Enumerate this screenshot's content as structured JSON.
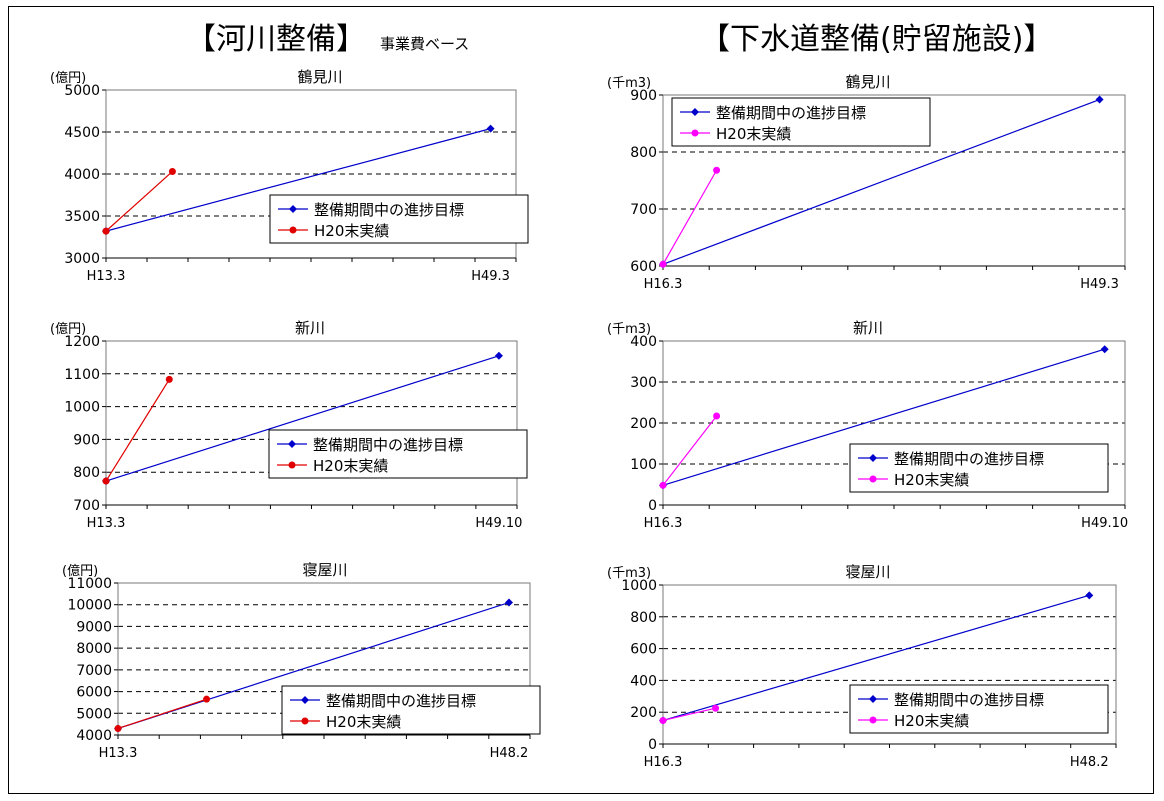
{
  "headings": {
    "river": "【河川整備】",
    "river_sub": "事業費ベース",
    "sewer": "【下水道整備(貯留施設)】"
  },
  "chart_data": [
    {
      "type": "line",
      "title": "鶴見川",
      "ylabel": "(億円)",
      "ylim": [
        3000,
        5000
      ],
      "yticks": [
        3000,
        3500,
        4000,
        4500,
        5000
      ],
      "xlabels": [
        "H13.3",
        "H49.3"
      ],
      "xlim": [
        0,
        100
      ],
      "minor_xticks": 10,
      "dashed_grid": [
        3500,
        4000,
        4500
      ],
      "legend_loc": "right",
      "series": [
        {
          "name": "整備期間中の進捗目標",
          "color": "#0000cc",
          "marker": "diamond",
          "x": [
            0,
            93.8
          ],
          "y": [
            3320,
            4540
          ]
        },
        {
          "name": "H20末実績",
          "color": "#e00000",
          "marker": "circle",
          "x": [
            0,
            16.2
          ],
          "y": [
            3320,
            4030
          ]
        }
      ]
    },
    {
      "type": "line",
      "title": "鶴見川",
      "ylabel": "(千m3)",
      "ylim": [
        600,
        900
      ],
      "yticks": [
        600,
        700,
        800,
        900
      ],
      "xlabels": [
        "H16.3",
        "H49.3"
      ],
      "xlim": [
        0,
        100
      ],
      "minor_xticks": 10,
      "dashed_grid": [
        700,
        800
      ],
      "legend_loc": "top-left",
      "series": [
        {
          "name": "整備期間中の進捗目標",
          "color": "#0000cc",
          "marker": "diamond",
          "x": [
            0,
            94.5
          ],
          "y": [
            603,
            892
          ]
        },
        {
          "name": "H20末実績",
          "color": "#ff00ff",
          "marker": "circle",
          "x": [
            0,
            11.6
          ],
          "y": [
            603,
            768
          ]
        }
      ]
    },
    {
      "type": "line",
      "title": "新川",
      "ylabel": "(億円)",
      "ylim": [
        700,
        1200
      ],
      "yticks": [
        700,
        800,
        900,
        1000,
        1100,
        1200
      ],
      "xlabels": [
        "H13.3",
        "H49.10"
      ],
      "xlim": [
        0,
        100
      ],
      "minor_xticks": 10,
      "dashed_grid": [
        800,
        900,
        1000,
        1100
      ],
      "legend_loc": "right",
      "series": [
        {
          "name": "整備期間中の進捗目標",
          "color": "#0000cc",
          "marker": "diamond",
          "x": [
            0,
            95.6
          ],
          "y": [
            773,
            1155
          ]
        },
        {
          "name": "H20末実績",
          "color": "#e00000",
          "marker": "circle",
          "x": [
            0,
            15.4
          ],
          "y": [
            773,
            1083
          ]
        }
      ]
    },
    {
      "type": "line",
      "title": "新川",
      "ylabel": "(千m3)",
      "ylim": [
        0,
        400
      ],
      "yticks": [
        0,
        100,
        200,
        300,
        400
      ],
      "xlabels": [
        "H16.3",
        "H49.10"
      ],
      "xlim": [
        0,
        100
      ],
      "minor_xticks": 10,
      "dashed_grid": [
        100,
        200,
        300
      ],
      "legend_loc": "bottom-right",
      "series": [
        {
          "name": "整備期間中の進捗目標",
          "color": "#0000cc",
          "marker": "diamond",
          "x": [
            0,
            95.6
          ],
          "y": [
            48,
            380
          ]
        },
        {
          "name": "H20末実績",
          "color": "#ff00ff",
          "marker": "circle",
          "x": [
            0,
            11.6
          ],
          "y": [
            48,
            217
          ]
        }
      ]
    },
    {
      "type": "line",
      "title": "寝屋川",
      "ylabel": "(億円)",
      "ylim": [
        4000,
        11000
      ],
      "yticks": [
        4000,
        5000,
        6000,
        7000,
        8000,
        9000,
        10000,
        11000
      ],
      "xlabels": [
        "H13.3",
        "H48.2"
      ],
      "xlim": [
        0,
        100
      ],
      "minor_xticks": 10,
      "dashed_grid": [
        5000,
        6000,
        7000,
        8000,
        9000,
        10000
      ],
      "legend_loc": "bottom-right",
      "series": [
        {
          "name": "整備期間中の進捗目標",
          "color": "#0000cc",
          "marker": "diamond",
          "x": [
            0,
            94.9
          ],
          "y": [
            4300,
            10100
          ]
        },
        {
          "name": "H20末実績",
          "color": "#e00000",
          "marker": "circle",
          "x": [
            0,
            21.5
          ],
          "y": [
            4300,
            5650
          ]
        }
      ]
    },
    {
      "type": "line",
      "title": "寝屋川",
      "ylabel": "(千m3)",
      "ylim": [
        0,
        1000
      ],
      "yticks": [
        0,
        200,
        400,
        600,
        800,
        1000
      ],
      "xlabels": [
        "H16.3",
        "H48.2"
      ],
      "xlim": [
        0,
        100
      ],
      "minor_xticks": 10,
      "dashed_grid": [
        200,
        400,
        600,
        800
      ],
      "legend_loc": "bottom-right",
      "series": [
        {
          "name": "整備期間中の進捗目標",
          "color": "#0000cc",
          "marker": "diamond",
          "x": [
            0,
            94.1
          ],
          "y": [
            148,
            935
          ]
        },
        {
          "name": "H20末実績",
          "color": "#ff00ff",
          "marker": "circle",
          "x": [
            0,
            11.6
          ],
          "y": [
            148,
            225
          ]
        }
      ]
    }
  ]
}
